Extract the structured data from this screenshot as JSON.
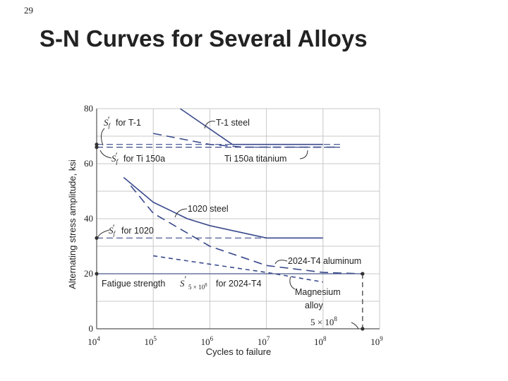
{
  "slide": {
    "number": "29",
    "title": "S-N Curves for Several Alloys"
  },
  "chart_data": {
    "type": "line",
    "xlabel": "Cycles to failure",
    "ylabel": "Alternating stress amplitude, ksi",
    "x_scale": "log",
    "xlim": [
      10000,
      1000000000
    ],
    "ylim": [
      0,
      80
    ],
    "x_ticks": [
      {
        "value": 10000,
        "base": "10",
        "exp": "4"
      },
      {
        "value": 100000,
        "base": "10",
        "exp": "5"
      },
      {
        "value": 1000000,
        "base": "10",
        "exp": "6"
      },
      {
        "value": 10000000,
        "base": "10",
        "exp": "7"
      },
      {
        "value": 100000000,
        "base": "10",
        "exp": "8"
      },
      {
        "value": 1000000000,
        "base": "10",
        "exp": "9"
      }
    ],
    "y_ticks": [
      0,
      20,
      40,
      60,
      80
    ],
    "grid": true,
    "series": [
      {
        "key": "t1-steel",
        "style": "solid",
        "x": [
          300000,
          2500000,
          100000000
        ],
        "y": [
          80,
          67,
          67
        ]
      },
      {
        "key": "ti-150a",
        "style": "dashed",
        "x": [
          100000,
          1000000,
          4000000,
          200000000
        ],
        "y": [
          71,
          67,
          66,
          66
        ]
      },
      {
        "key": "steel-1020",
        "style": "solid",
        "x": [
          30000,
          100000,
          400000,
          1000000,
          10000000,
          100000000
        ],
        "y": [
          55,
          46,
          40,
          37.5,
          33,
          33
        ]
      },
      {
        "key": "al-2024-t4",
        "style": "dashed",
        "x": [
          40000,
          100000,
          1000000,
          10000000,
          100000000,
          500000000
        ],
        "y": [
          52,
          42,
          30,
          23,
          20.5,
          20
        ]
      },
      {
        "key": "magnesium",
        "style": "dotted",
        "x": [
          100000,
          1000000,
          10000000,
          100000000
        ],
        "y": [
          26.5,
          23.5,
          20.5,
          17
        ]
      },
      {
        "key": "fatigue-line",
        "style": "solid-thin",
        "x": [
          10000,
          500000000
        ],
        "y": [
          20,
          20
        ]
      },
      {
        "key": "sf-t1-line",
        "style": "dashed-thin",
        "x": [
          10000,
          200000000
        ],
        "y": [
          67,
          67
        ]
      },
      {
        "key": "sf-ti-line",
        "style": "dashed-thin",
        "x": [
          10000,
          200000000
        ],
        "y": [
          66,
          66
        ]
      },
      {
        "key": "sf-1020-line",
        "style": "dashed-thin",
        "x": [
          10000,
          100000000
        ],
        "y": [
          33,
          33
        ]
      }
    ],
    "endpoints": [
      {
        "x": 10000,
        "y": 67
      },
      {
        "x": 10000,
        "y": 66
      },
      {
        "x": 10000,
        "y": 33
      },
      {
        "x": 10000,
        "y": 20
      },
      {
        "x": 500000000,
        "y": 20
      },
      {
        "x": 500000000,
        "y": 0
      }
    ],
    "annotations": {
      "t1_steel": "T-1 steel",
      "sf_t1": "for T-1",
      "sf_ti": "for Ti 150a",
      "ti_titanium": "Ti 150a titanium",
      "steel_1020": "1020 steel",
      "sf_1020": "for 1020",
      "aluminum": "2024-T4 aluminum",
      "fatigue_strength": "Fatigue strength",
      "fatigue_for": "for 2024-T4",
      "magnesium_1": "Magnesium",
      "magnesium_2": "alloy",
      "cycles_5e8": "5 × 10",
      "cycles_5e8_exp": "8",
      "sf_symbol": "S",
      "sf_sub": "f",
      "sf_prime": "′",
      "fs_sub": "5 × 10",
      "fs_sub_exp": "8"
    },
    "colors": {
      "curve": "#3a4a8c",
      "fatigue": "#4a5a8a",
      "marker_line": "#333333",
      "grid": "#c8c8c8",
      "axis": "#555555"
    }
  }
}
